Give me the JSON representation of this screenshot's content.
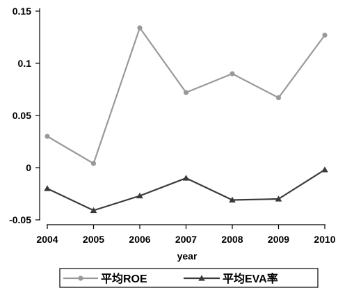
{
  "chart_data": {
    "type": "line",
    "title": "",
    "xlabel": "year",
    "ylabel": "",
    "x": [
      "2004",
      "2005",
      "2006",
      "2007",
      "2008",
      "2009",
      "2010"
    ],
    "ylim": [
      -0.05,
      0.15
    ],
    "yticks": [
      "-0.05",
      "0",
      "0.05",
      "0.1",
      "0.15"
    ],
    "grid": false,
    "legend_position": "bottom",
    "series": [
      {
        "name": "平均ROE",
        "values": [
          0.03,
          0.004,
          0.134,
          0.072,
          0.09,
          0.067,
          0.127
        ],
        "color": "#999999",
        "marker": "circle"
      },
      {
        "name": "平均EVA率",
        "values": [
          -0.02,
          -0.041,
          -0.027,
          -0.01,
          -0.031,
          -0.03,
          -0.002
        ],
        "color": "#3a3a3a",
        "marker": "triangle"
      }
    ]
  }
}
